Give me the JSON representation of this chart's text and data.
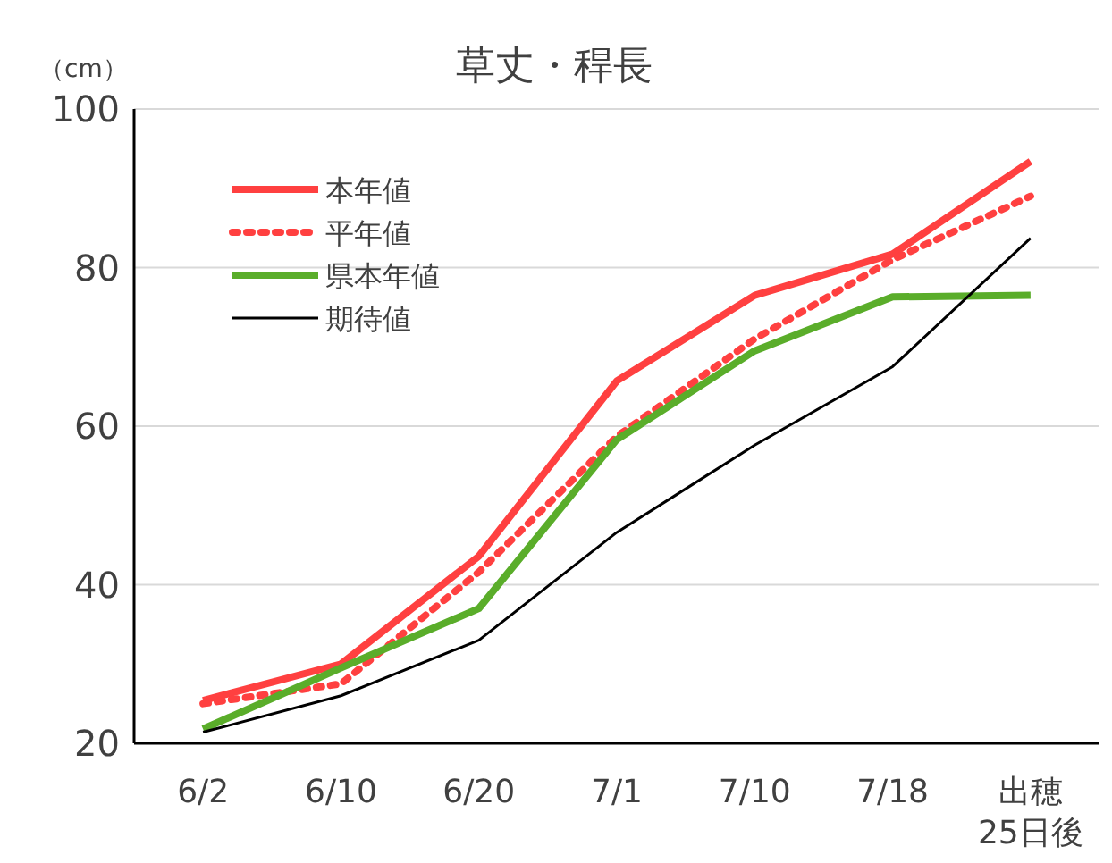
{
  "chart_data": {
    "type": "line",
    "title": "草丈・稈長",
    "ylabel": "（cm）",
    "categories": [
      "6/2",
      "6/10",
      "6/20",
      "7/1",
      "7/10",
      "7/18",
      "出穂\n25日後"
    ],
    "series": [
      {
        "name": "本年値",
        "color": "#ff4040",
        "line_style": "solid",
        "values": [
          25.4,
          30,
          43.6,
          65.7,
          76.5,
          81.7,
          93.4
        ]
      },
      {
        "name": "平年値",
        "color": "#ff4040",
        "line_style": "dotted",
        "values": [
          25,
          27.5,
          41.6,
          58.7,
          71,
          81,
          89
        ]
      },
      {
        "name": "県本年値",
        "color": "#5aad2a",
        "line_style": "solid",
        "values": [
          21.8,
          29.5,
          37,
          58.3,
          69.5,
          76.3,
          76.5
        ]
      },
      {
        "name": "期待値",
        "color": "#000000",
        "line_style": "solid",
        "values": [
          21.4,
          26,
          33,
          46.6,
          57.6,
          67.5,
          83.7
        ]
      }
    ],
    "ylim": [
      20,
      100
    ],
    "yticks": [
      20,
      40,
      60,
      80,
      100
    ],
    "grid": "y",
    "legend": "top left",
    "marker": "none"
  }
}
